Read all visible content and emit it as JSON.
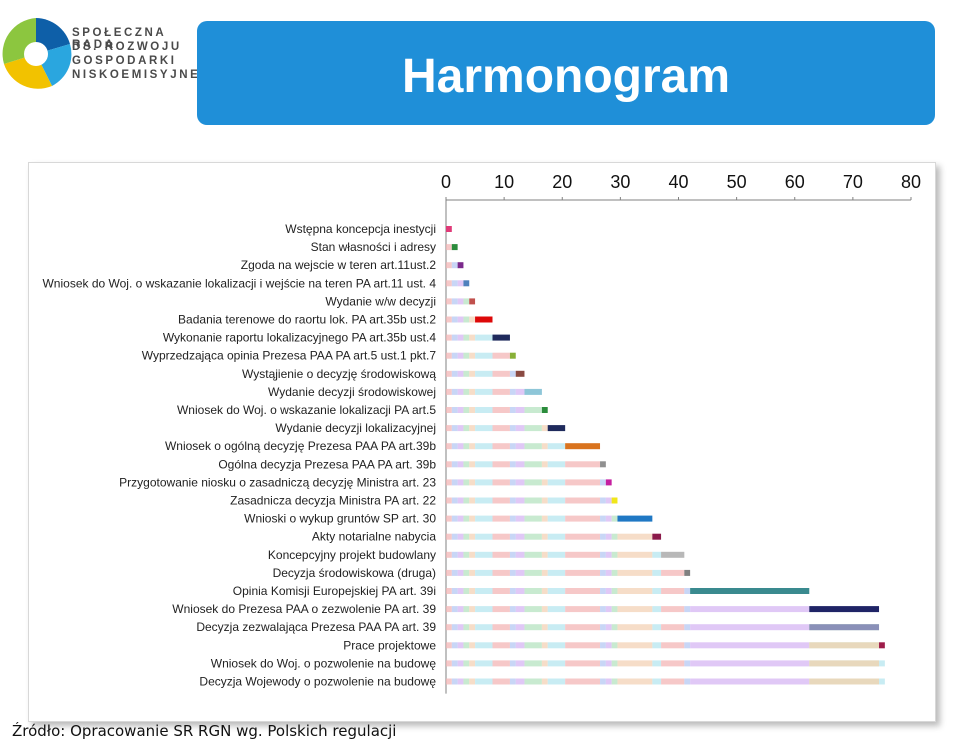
{
  "logo": {
    "lines": [
      "SPOŁECZNA RADA",
      "DS. ROZWOJU",
      "GOSPODARKI",
      "NISKOEMISYJNEJ"
    ],
    "colors": [
      "#0e5fa8",
      "#2aa6df",
      "#f2c200",
      "#8cc63f"
    ]
  },
  "banner": {
    "title": "Harmonogram",
    "color": "#1f8fd8"
  },
  "source": "Źródło: Opracowanie SR RGN wg. Polskich regulacji",
  "chart_data": {
    "type": "gantt",
    "title": "",
    "xlabel": "",
    "ylabel": "",
    "xlim": [
      0,
      80
    ],
    "xticks": [
      "0",
      "10",
      "20",
      "30",
      "40",
      "50",
      "60",
      "70",
      "80"
    ],
    "axis_position": "top",
    "grid": false,
    "legend": "none",
    "series": [
      {
        "name": "Wstępna koncepcja inestycji",
        "start": 0,
        "duration": 1,
        "color": "#e03a78"
      },
      {
        "name": "Stan własności i adresy",
        "start": 1,
        "duration": 1,
        "color": "#2b8c3c"
      },
      {
        "name": "Zgoda na wejscie w teren art.11ust.2",
        "start": 2,
        "duration": 1,
        "color": "#7b2a8c"
      },
      {
        "name": "Wniosek do Woj. o wskazanie lokalizacji i wejście na teren PA art.11 ust. 4",
        "start": 3,
        "duration": 1,
        "color": "#4f81bd"
      },
      {
        "name": "Wydanie w/w decyzji",
        "start": 4,
        "duration": 1,
        "color": "#c0504d"
      },
      {
        "name": "Badania terenowe do raortu lok. PA art.35b ust.2",
        "start": 5,
        "duration": 3,
        "color": "#dd0808"
      },
      {
        "name": "Wykonanie raportu lokalizacyjnego PA art.35b ust.4",
        "start": 8,
        "duration": 3,
        "color": "#1f2a5c"
      },
      {
        "name": "Wyprzedzająca opinia Prezesa PAA PA art.5 ust.1 pkt.7",
        "start": 11,
        "duration": 1,
        "color": "#88b037"
      },
      {
        "name": "Wystąjienie o decyzję środowiskową",
        "start": 12,
        "duration": 1.5,
        "color": "#8a4a42"
      },
      {
        "name": "Wydanie decyzji środowiskowej",
        "start": 13.5,
        "duration": 3,
        "color": "#8ec6d8"
      },
      {
        "name": "Wniosek do Woj. o wskazanie lokalizacji PA art.5",
        "start": 16.5,
        "duration": 1,
        "color": "#2b8c3c"
      },
      {
        "name": "Wydanie decyzji lokalizacyjnej",
        "start": 17.5,
        "duration": 3,
        "color": "#1f2a5c"
      },
      {
        "name": "Wniosek o ogólną decyzję  Prezesa PAA PA art.39b",
        "start": 20.5,
        "duration": 6,
        "color": "#d9731e"
      },
      {
        "name": "Ogólna decyzja Prezesa PAA PA art. 39b",
        "start": 26.5,
        "duration": 1,
        "color": "#909090"
      },
      {
        "name": "Przygotowanie niosku o zasadniczą decyzję Ministra art. 23",
        "start": 27.5,
        "duration": 1,
        "color": "#c51fa0"
      },
      {
        "name": "Zasadnicza decyzja Ministra PA art. 22",
        "start": 28.5,
        "duration": 1,
        "color": "#f0e61a"
      },
      {
        "name": "Wnioski  o wykup gruntów SP  art. 30",
        "start": 29.5,
        "duration": 6,
        "color": "#1f78c4"
      },
      {
        "name": "Akty notarialne nabycia",
        "start": 35.5,
        "duration": 1.5,
        "color": "#8b1a4a"
      },
      {
        "name": "Koncepcyjny projekt budowlany",
        "start": 37,
        "duration": 4,
        "color": "#b8b8b8"
      },
      {
        "name": "Decyzja środowiskowa (druga)",
        "start": 41,
        "duration": 1,
        "color": "#808080"
      },
      {
        "name": "Opinia Komisji Europejskiej PA art. 39i",
        "start": 42,
        "duration": 20.5,
        "color": "#3a8a8f"
      },
      {
        "name": "Wniosek do Prezesa PAA o zezwolenie PA art. 39",
        "start": 62.5,
        "duration": 12,
        "color": "#1f2466"
      },
      {
        "name": "Decyzja zezwalająca Prezesa PAA PA art. 39",
        "start": 62.5,
        "duration": 12,
        "color": "#8a90b8"
      },
      {
        "name": "Prace  projektowe",
        "start": 74.5,
        "duration": 1,
        "color": "#9e1c4a"
      },
      {
        "name": "Wniosek do Woj. o pozwolenie na budowę",
        "start": 75.5,
        "duration": 0,
        "color": "#cccccc"
      },
      {
        "name": "Decyzja Wojewody o pozwolenie na budowę",
        "start": 75.5,
        "duration": 0,
        "color": "#cccccc"
      }
    ]
  }
}
